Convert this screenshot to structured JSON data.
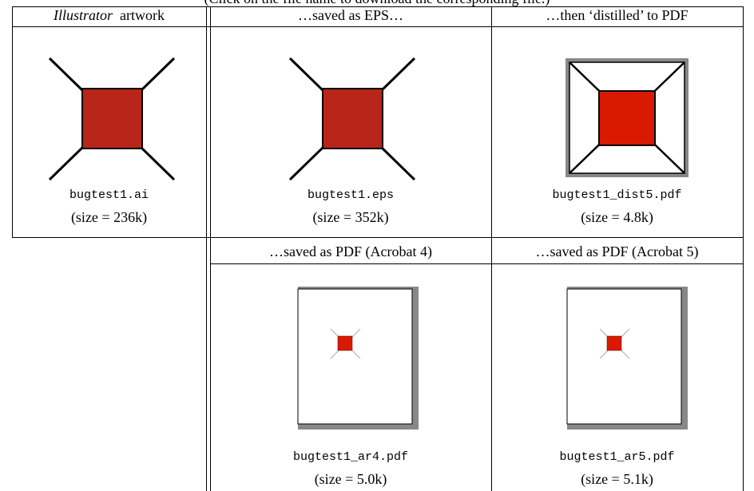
{
  "caption": "(Click on the file name to download the corresponding file.)",
  "table": {
    "header_row_1": [
      {
        "italic": "Illustrator",
        "text": "artwork"
      },
      {
        "text": "…saved as EPS…"
      },
      {
        "text": "…then ‘distilled’ to PDF"
      }
    ],
    "row_1": [
      {
        "file": "bugtest1.ai",
        "size": "(size = 236k)"
      },
      {
        "file": "bugtest1.eps",
        "size": "(size = 352k)"
      },
      {
        "file": "bugtest1_dist5.pdf",
        "size": "(size = 4.8k)"
      }
    ],
    "header_row_2": [
      {
        "text": "…saved as PDF (Acrobat 4)"
      },
      {
        "text": "…saved as PDF (Acrobat 5)"
      }
    ],
    "row_2": [
      {
        "file": "bugtest1_ar4.pdf",
        "size": "(size = 5.0k)"
      },
      {
        "file": "bugtest1_ar5.pdf",
        "size": "(size = 5.1k)"
      }
    ]
  }
}
